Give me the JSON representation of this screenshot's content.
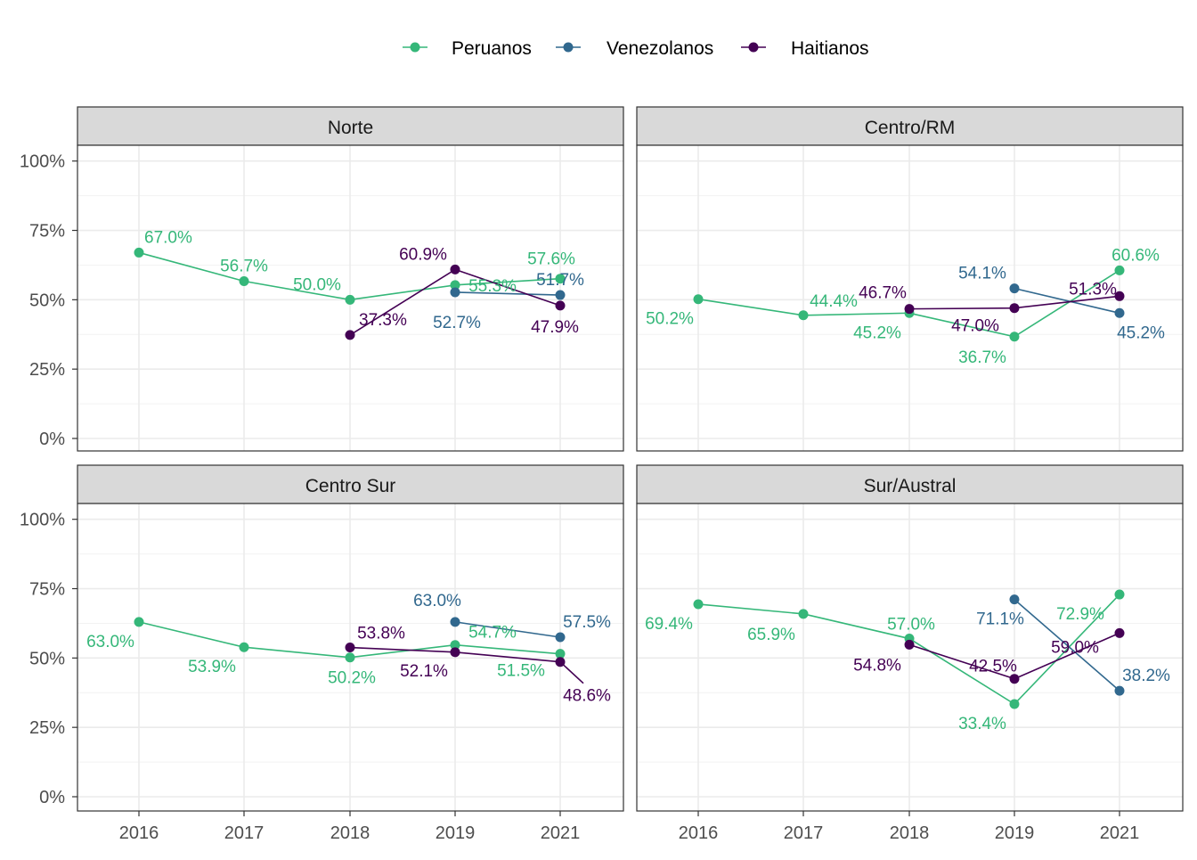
{
  "colors": {
    "Peruanos": "#35B779",
    "Venezolanos": "#31688E",
    "Haitianos": "#440154",
    "strip_bg": "#D9D9D9",
    "grid": "#EBEBEB",
    "axis_text": "#4D4D4D",
    "panel_border": "#333333"
  },
  "legend": {
    "position": "top",
    "items": [
      "Peruanos",
      "Venezolanos",
      "Haitianos"
    ]
  },
  "chart_data": {
    "type": "line",
    "facets": [
      "Norte",
      "Centro/RM",
      "Centro Sur",
      "Sur/Austral"
    ],
    "x_categories": [
      "2016",
      "2017",
      "2018",
      "2019",
      "2021"
    ],
    "y_ticks": [
      "0%",
      "25%",
      "50%",
      "75%",
      "100%"
    ],
    "ylim": [
      0,
      100
    ],
    "grid": true,
    "panels": [
      {
        "name": "Norte",
        "series": [
          {
            "name": "Peruanos",
            "x": [
              "2016",
              "2017",
              "2018",
              "2019",
              "2021"
            ],
            "values": [
              67.0,
              56.7,
              50.0,
              55.3,
              57.6
            ],
            "labels": [
              "67.0%",
              "56.7%",
              "50.0%",
              "55.3%",
              "57.6%"
            ]
          },
          {
            "name": "Venezolanos",
            "x": [
              "2019",
              "2021"
            ],
            "values": [
              52.7,
              51.7
            ],
            "labels": [
              "52.7%",
              "51.7%"
            ]
          },
          {
            "name": "Haitianos",
            "x": [
              "2018",
              "2019",
              "2021"
            ],
            "values": [
              37.3,
              60.9,
              47.9
            ],
            "labels": [
              "37.3%",
              "60.9%",
              "47.9%"
            ]
          }
        ]
      },
      {
        "name": "Centro/RM",
        "series": [
          {
            "name": "Peruanos",
            "x": [
              "2016",
              "2017",
              "2018",
              "2019",
              "2021"
            ],
            "values": [
              50.2,
              44.4,
              45.2,
              36.7,
              60.6
            ],
            "labels": [
              "50.2%",
              "44.4%",
              "45.2%",
              "36.7%",
              "60.6%"
            ]
          },
          {
            "name": "Venezolanos",
            "x": [
              "2019",
              "2021"
            ],
            "values": [
              54.1,
              45.2
            ],
            "labels": [
              "54.1%",
              "45.2%"
            ]
          },
          {
            "name": "Haitianos",
            "x": [
              "2018",
              "2019",
              "2021"
            ],
            "values": [
              46.7,
              47.0,
              51.3
            ],
            "labels": [
              "46.7%",
              "47.0%",
              "51.3%"
            ]
          }
        ]
      },
      {
        "name": "Centro Sur",
        "series": [
          {
            "name": "Peruanos",
            "x": [
              "2016",
              "2017",
              "2018",
              "2019",
              "2021"
            ],
            "values": [
              63.0,
              53.9,
              50.2,
              54.7,
              51.5
            ],
            "labels": [
              "63.0%",
              "53.9%",
              "50.2%",
              "54.7%",
              "51.5%"
            ]
          },
          {
            "name": "Venezolanos",
            "x": [
              "2019",
              "2021"
            ],
            "values": [
              63.0,
              57.5
            ],
            "labels": [
              "63.0%",
              "57.5%"
            ]
          },
          {
            "name": "Haitianos",
            "x": [
              "2018",
              "2019",
              "2021"
            ],
            "values": [
              53.8,
              52.1,
              48.6
            ],
            "labels": [
              "53.8%",
              "52.1%",
              "48.6%"
            ]
          }
        ]
      },
      {
        "name": "Sur/Austral",
        "series": [
          {
            "name": "Peruanos",
            "x": [
              "2016",
              "2017",
              "2018",
              "2019",
              "2021"
            ],
            "values": [
              69.4,
              65.9,
              57.0,
              33.4,
              72.9
            ],
            "labels": [
              "69.4%",
              "65.9%",
              "57.0%",
              "33.4%",
              "72.9%"
            ]
          },
          {
            "name": "Venezolanos",
            "x": [
              "2019",
              "2021"
            ],
            "values": [
              71.1,
              38.2
            ],
            "labels": [
              "71.1%",
              "38.2%"
            ]
          },
          {
            "name": "Haitianos",
            "x": [
              "2018",
              "2019",
              "2021"
            ],
            "values": [
              54.8,
              42.5,
              59.0
            ],
            "labels": [
              "54.8%",
              "42.5%",
              "59.0%"
            ]
          }
        ]
      }
    ]
  }
}
